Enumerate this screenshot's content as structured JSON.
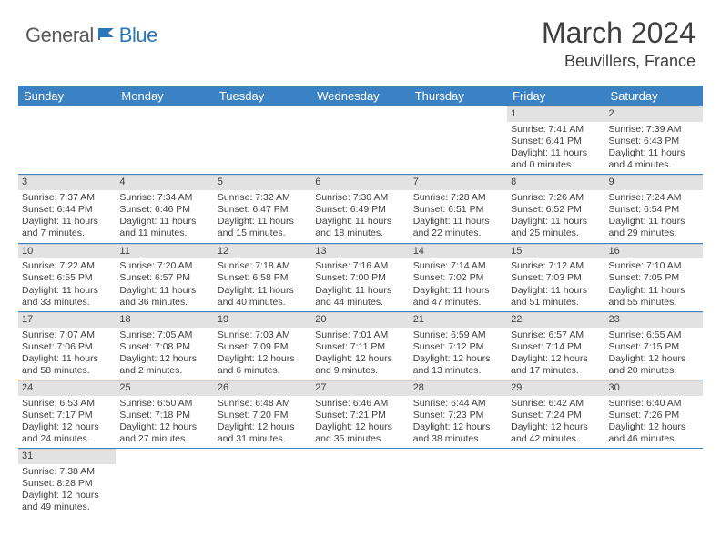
{
  "logo": {
    "general": "General",
    "blue": "Blue"
  },
  "title": "March 2024",
  "location": "Beuvillers, France",
  "headers": [
    "Sunday",
    "Monday",
    "Tuesday",
    "Wednesday",
    "Thursday",
    "Friday",
    "Saturday"
  ],
  "colors": {
    "header_bg": "#3b82c4",
    "header_text": "#ffffff",
    "daynum_bg": "#e2e2e2",
    "row_border": "#3b82c4",
    "text": "#404040",
    "logo_gray": "#5a5a5a",
    "logo_blue": "#2b77b8"
  },
  "weeks": [
    [
      null,
      null,
      null,
      null,
      null,
      {
        "d": "1",
        "sr": "Sunrise: 7:41 AM",
        "ss": "Sunset: 6:41 PM",
        "dl1": "Daylight: 11 hours",
        "dl2": "and 0 minutes."
      },
      {
        "d": "2",
        "sr": "Sunrise: 7:39 AM",
        "ss": "Sunset: 6:43 PM",
        "dl1": "Daylight: 11 hours",
        "dl2": "and 4 minutes."
      }
    ],
    [
      {
        "d": "3",
        "sr": "Sunrise: 7:37 AM",
        "ss": "Sunset: 6:44 PM",
        "dl1": "Daylight: 11 hours",
        "dl2": "and 7 minutes."
      },
      {
        "d": "4",
        "sr": "Sunrise: 7:34 AM",
        "ss": "Sunset: 6:46 PM",
        "dl1": "Daylight: 11 hours",
        "dl2": "and 11 minutes."
      },
      {
        "d": "5",
        "sr": "Sunrise: 7:32 AM",
        "ss": "Sunset: 6:47 PM",
        "dl1": "Daylight: 11 hours",
        "dl2": "and 15 minutes."
      },
      {
        "d": "6",
        "sr": "Sunrise: 7:30 AM",
        "ss": "Sunset: 6:49 PM",
        "dl1": "Daylight: 11 hours",
        "dl2": "and 18 minutes."
      },
      {
        "d": "7",
        "sr": "Sunrise: 7:28 AM",
        "ss": "Sunset: 6:51 PM",
        "dl1": "Daylight: 11 hours",
        "dl2": "and 22 minutes."
      },
      {
        "d": "8",
        "sr": "Sunrise: 7:26 AM",
        "ss": "Sunset: 6:52 PM",
        "dl1": "Daylight: 11 hours",
        "dl2": "and 25 minutes."
      },
      {
        "d": "9",
        "sr": "Sunrise: 7:24 AM",
        "ss": "Sunset: 6:54 PM",
        "dl1": "Daylight: 11 hours",
        "dl2": "and 29 minutes."
      }
    ],
    [
      {
        "d": "10",
        "sr": "Sunrise: 7:22 AM",
        "ss": "Sunset: 6:55 PM",
        "dl1": "Daylight: 11 hours",
        "dl2": "and 33 minutes."
      },
      {
        "d": "11",
        "sr": "Sunrise: 7:20 AM",
        "ss": "Sunset: 6:57 PM",
        "dl1": "Daylight: 11 hours",
        "dl2": "and 36 minutes."
      },
      {
        "d": "12",
        "sr": "Sunrise: 7:18 AM",
        "ss": "Sunset: 6:58 PM",
        "dl1": "Daylight: 11 hours",
        "dl2": "and 40 minutes."
      },
      {
        "d": "13",
        "sr": "Sunrise: 7:16 AM",
        "ss": "Sunset: 7:00 PM",
        "dl1": "Daylight: 11 hours",
        "dl2": "and 44 minutes."
      },
      {
        "d": "14",
        "sr": "Sunrise: 7:14 AM",
        "ss": "Sunset: 7:02 PM",
        "dl1": "Daylight: 11 hours",
        "dl2": "and 47 minutes."
      },
      {
        "d": "15",
        "sr": "Sunrise: 7:12 AM",
        "ss": "Sunset: 7:03 PM",
        "dl1": "Daylight: 11 hours",
        "dl2": "and 51 minutes."
      },
      {
        "d": "16",
        "sr": "Sunrise: 7:10 AM",
        "ss": "Sunset: 7:05 PM",
        "dl1": "Daylight: 11 hours",
        "dl2": "and 55 minutes."
      }
    ],
    [
      {
        "d": "17",
        "sr": "Sunrise: 7:07 AM",
        "ss": "Sunset: 7:06 PM",
        "dl1": "Daylight: 11 hours",
        "dl2": "and 58 minutes."
      },
      {
        "d": "18",
        "sr": "Sunrise: 7:05 AM",
        "ss": "Sunset: 7:08 PM",
        "dl1": "Daylight: 12 hours",
        "dl2": "and 2 minutes."
      },
      {
        "d": "19",
        "sr": "Sunrise: 7:03 AM",
        "ss": "Sunset: 7:09 PM",
        "dl1": "Daylight: 12 hours",
        "dl2": "and 6 minutes."
      },
      {
        "d": "20",
        "sr": "Sunrise: 7:01 AM",
        "ss": "Sunset: 7:11 PM",
        "dl1": "Daylight: 12 hours",
        "dl2": "and 9 minutes."
      },
      {
        "d": "21",
        "sr": "Sunrise: 6:59 AM",
        "ss": "Sunset: 7:12 PM",
        "dl1": "Daylight: 12 hours",
        "dl2": "and 13 minutes."
      },
      {
        "d": "22",
        "sr": "Sunrise: 6:57 AM",
        "ss": "Sunset: 7:14 PM",
        "dl1": "Daylight: 12 hours",
        "dl2": "and 17 minutes."
      },
      {
        "d": "23",
        "sr": "Sunrise: 6:55 AM",
        "ss": "Sunset: 7:15 PM",
        "dl1": "Daylight: 12 hours",
        "dl2": "and 20 minutes."
      }
    ],
    [
      {
        "d": "24",
        "sr": "Sunrise: 6:53 AM",
        "ss": "Sunset: 7:17 PM",
        "dl1": "Daylight: 12 hours",
        "dl2": "and 24 minutes."
      },
      {
        "d": "25",
        "sr": "Sunrise: 6:50 AM",
        "ss": "Sunset: 7:18 PM",
        "dl1": "Daylight: 12 hours",
        "dl2": "and 27 minutes."
      },
      {
        "d": "26",
        "sr": "Sunrise: 6:48 AM",
        "ss": "Sunset: 7:20 PM",
        "dl1": "Daylight: 12 hours",
        "dl2": "and 31 minutes."
      },
      {
        "d": "27",
        "sr": "Sunrise: 6:46 AM",
        "ss": "Sunset: 7:21 PM",
        "dl1": "Daylight: 12 hours",
        "dl2": "and 35 minutes."
      },
      {
        "d": "28",
        "sr": "Sunrise: 6:44 AM",
        "ss": "Sunset: 7:23 PM",
        "dl1": "Daylight: 12 hours",
        "dl2": "and 38 minutes."
      },
      {
        "d": "29",
        "sr": "Sunrise: 6:42 AM",
        "ss": "Sunset: 7:24 PM",
        "dl1": "Daylight: 12 hours",
        "dl2": "and 42 minutes."
      },
      {
        "d": "30",
        "sr": "Sunrise: 6:40 AM",
        "ss": "Sunset: 7:26 PM",
        "dl1": "Daylight: 12 hours",
        "dl2": "and 46 minutes."
      }
    ],
    [
      {
        "d": "31",
        "sr": "Sunrise: 7:38 AM",
        "ss": "Sunset: 8:28 PM",
        "dl1": "Daylight: 12 hours",
        "dl2": "and 49 minutes."
      },
      null,
      null,
      null,
      null,
      null,
      null
    ]
  ]
}
